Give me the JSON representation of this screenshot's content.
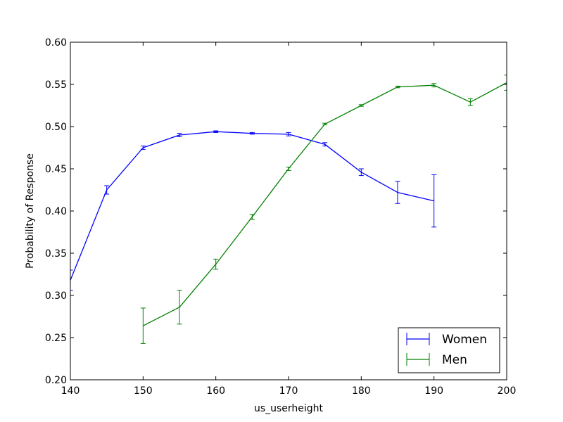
{
  "chart_data": {
    "type": "line",
    "title": "",
    "xlabel": "us_userheight",
    "ylabel": "Probability of Response",
    "xlim": [
      140,
      200
    ],
    "ylim": [
      0.2,
      0.6
    ],
    "xticks": [
      140,
      150,
      160,
      170,
      180,
      190,
      200
    ],
    "yticks": [
      0.2,
      0.25,
      0.3,
      0.35,
      0.4,
      0.45,
      0.5,
      0.55,
      0.6
    ],
    "xtick_labels": [
      "140",
      "150",
      "160",
      "170",
      "180",
      "190",
      "200"
    ],
    "ytick_labels": [
      "0.20",
      "0.25",
      "0.30",
      "0.35",
      "0.40",
      "0.45",
      "0.50",
      "0.55",
      "0.60"
    ],
    "grid": false,
    "legend": {
      "placement": "lower-right"
    },
    "error_bars": true,
    "series": [
      {
        "name": "Women",
        "color": "#0000ff",
        "x": [
          140,
          145,
          150,
          155,
          160,
          165,
          170,
          175,
          180,
          185,
          190
        ],
        "y": [
          0.318,
          0.425,
          0.475,
          0.49,
          0.494,
          0.492,
          0.491,
          0.479,
          0.446,
          0.422,
          0.412
        ],
        "err": [
          0.012,
          0.005,
          0.002,
          0.002,
          0.001,
          0.001,
          0.002,
          0.002,
          0.004,
          0.013,
          0.031
        ]
      },
      {
        "name": "Men",
        "color": "#008000",
        "x": [
          150,
          155,
          160,
          165,
          170,
          175,
          180,
          185,
          190,
          195,
          200
        ],
        "y": [
          0.264,
          0.286,
          0.337,
          0.393,
          0.45,
          0.503,
          0.525,
          0.547,
          0.549,
          0.529,
          0.552
        ],
        "err": [
          0.021,
          0.02,
          0.006,
          0.003,
          0.002,
          0.001,
          0.001,
          0.001,
          0.002,
          0.004,
          0.009
        ]
      }
    ]
  }
}
